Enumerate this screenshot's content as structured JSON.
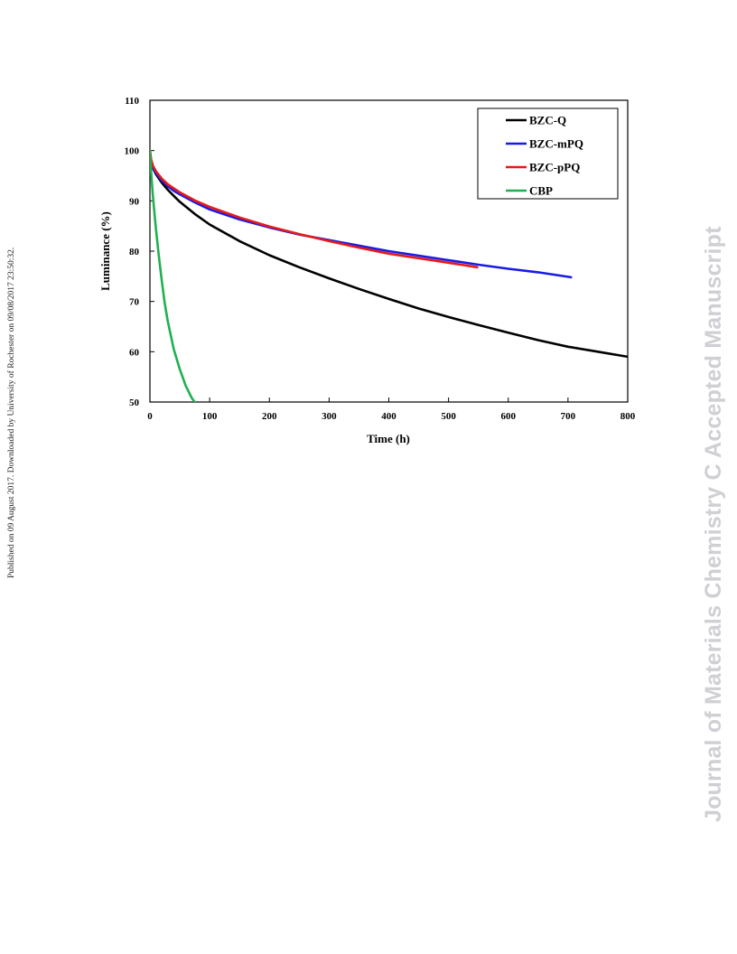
{
  "side_note": "Published on 09 August 2017. Downloaded by University of Rochester on 09/08/2017 23:50:32.",
  "watermark": "Journal of Materials Chemistry C Accepted Manuscript",
  "chart_data": {
    "type": "line",
    "title": "",
    "xlabel": "Time (h)",
    "ylabel": "Luminance (%)",
    "xlim": [
      0,
      800
    ],
    "ylim": [
      50,
      110
    ],
    "xticks": [
      0,
      100,
      200,
      300,
      400,
      500,
      600,
      700,
      800
    ],
    "yticks": [
      50,
      60,
      70,
      80,
      90,
      100,
      110
    ],
    "grid": false,
    "legend_position": "top-right",
    "series": [
      {
        "name": "BZC-Q",
        "color": "#000000",
        "x": [
          0,
          2,
          5,
          10,
          20,
          30,
          40,
          50,
          75,
          100,
          150,
          200,
          250,
          300,
          350,
          400,
          450,
          500,
          550,
          600,
          650,
          700,
          750,
          800
        ],
        "y": [
          100,
          98,
          96.5,
          95.3,
          93.6,
          92.2,
          91.0,
          89.8,
          87.4,
          85.3,
          82.0,
          79.2,
          76.8,
          74.6,
          72.5,
          70.5,
          68.6,
          66.9,
          65.3,
          63.8,
          62.3,
          61.0,
          60.0,
          59.0
        ]
      },
      {
        "name": "BZC-mPQ",
        "color": "#1a1ae6",
        "x": [
          0,
          2,
          5,
          10,
          20,
          30,
          40,
          50,
          75,
          100,
          150,
          200,
          250,
          300,
          350,
          400,
          450,
          500,
          550,
          600,
          650,
          705
        ],
        "y": [
          99.5,
          97.8,
          96.6,
          95.5,
          94.0,
          92.9,
          92.0,
          91.3,
          89.7,
          88.3,
          86.3,
          84.7,
          83.3,
          82.2,
          81.1,
          80.0,
          79.1,
          78.2,
          77.3,
          76.5,
          75.8,
          74.8
        ]
      },
      {
        "name": "BZC-pPQ",
        "color": "#e61a1a",
        "x": [
          0,
          2,
          5,
          10,
          20,
          30,
          40,
          50,
          75,
          100,
          150,
          200,
          250,
          300,
          350,
          400,
          450,
          500,
          548
        ],
        "y": [
          100,
          98.2,
          97.0,
          95.9,
          94.4,
          93.3,
          92.5,
          91.7,
          90.1,
          88.8,
          86.7,
          84.9,
          83.4,
          82.0,
          80.7,
          79.5,
          78.6,
          77.7,
          76.8
        ]
      },
      {
        "name": "CBP",
        "color": "#1fb050",
        "x": [
          0,
          1,
          3,
          5,
          8,
          10,
          15,
          20,
          25,
          30,
          40,
          50,
          60,
          70,
          75
        ],
        "y": [
          100,
          97.5,
          94.0,
          91.0,
          87.0,
          84.5,
          79.0,
          74.0,
          69.5,
          66.0,
          60.5,
          56.5,
          53.2,
          50.8,
          50.0
        ]
      }
    ]
  }
}
